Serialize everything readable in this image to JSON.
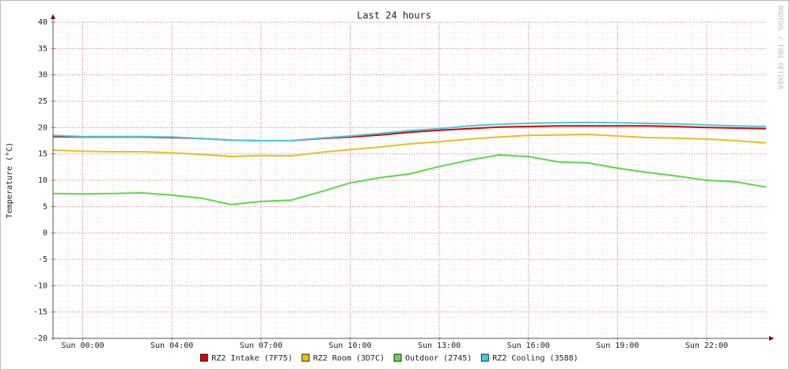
{
  "chart_data": {
    "type": "line",
    "title": "Last 24 hours",
    "y_label": "Temperature (°C)",
    "watermark": "RRDTOOL / TOBI OETIKER",
    "x": [
      0,
      1,
      2,
      3,
      4,
      5,
      6,
      7,
      8,
      9,
      10,
      11,
      12,
      13,
      14,
      15,
      16,
      17,
      18,
      19,
      20,
      21,
      22,
      23,
      24
    ],
    "xlim": [
      0,
      24
    ],
    "xticks": [
      {
        "value": 1,
        "label": "Sun 00:00"
      },
      {
        "value": 4,
        "label": "Sun 04:00"
      },
      {
        "value": 7,
        "label": "Sun 07:00"
      },
      {
        "value": 10,
        "label": "Sun 10:00"
      },
      {
        "value": 13,
        "label": "Sun 13:00"
      },
      {
        "value": 16,
        "label": "Sun 16:00"
      },
      {
        "value": 19,
        "label": "Sun 19:00"
      },
      {
        "value": 22,
        "label": "Sun 22:00"
      }
    ],
    "ylim": [
      -20,
      40
    ],
    "yticks": [
      -20,
      -15,
      -10,
      -5,
      0,
      5,
      10,
      15,
      20,
      25,
      30,
      35,
      40
    ],
    "grid": true,
    "legend": "bottom",
    "series": [
      {
        "name": "RZ2 Intake (7F75)",
        "color": "#dd0000",
        "values": [
          18.3,
          18.2,
          18.2,
          18.2,
          18.1,
          17.9,
          17.6,
          17.5,
          17.5,
          17.9,
          18.2,
          18.6,
          19.1,
          19.5,
          19.8,
          20.1,
          20.2,
          20.3,
          20.3,
          20.3,
          20.3,
          20.2,
          20.0,
          19.9,
          19.8
        ]
      },
      {
        "name": "RZ2 Room (3D7C)",
        "color": "#e6c020",
        "values": [
          15.7,
          15.5,
          15.4,
          15.4,
          15.2,
          14.9,
          14.5,
          14.7,
          14.6,
          15.3,
          15.8,
          16.3,
          16.9,
          17.3,
          17.8,
          18.2,
          18.5,
          18.6,
          18.7,
          18.4,
          18.1,
          18.0,
          17.8,
          17.5,
          17.1
        ]
      },
      {
        "name": "Outdoor (2745)",
        "color": "#55dd44",
        "values": [
          7.5,
          7.4,
          7.5,
          7.6,
          7.2,
          6.6,
          5.4,
          6.0,
          6.2,
          7.8,
          9.5,
          10.5,
          11.2,
          12.6,
          13.8,
          14.8,
          14.5,
          13.5,
          13.3,
          12.3,
          11.5,
          10.8,
          10.0,
          9.7,
          8.7
        ]
      },
      {
        "name": "RZ2 Cooling (3588)",
        "color": "#44ccdd",
        "values": [
          18.5,
          18.3,
          18.3,
          18.3,
          18.2,
          17.9,
          17.6,
          17.5,
          17.5,
          18.0,
          18.4,
          18.9,
          19.4,
          19.8,
          20.3,
          20.6,
          20.8,
          20.9,
          21.0,
          20.9,
          20.8,
          20.7,
          20.5,
          20.3,
          20.2
        ]
      }
    ]
  }
}
